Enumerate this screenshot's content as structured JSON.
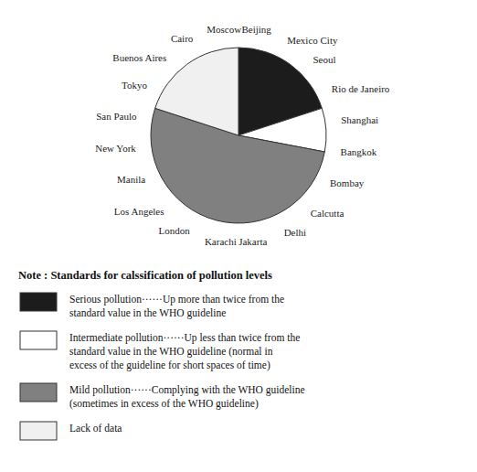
{
  "chart_data": {
    "type": "pie",
    "title": "Note : Standards for calssification of pollution levels",
    "categories": [
      "Serious pollution······Up more than twice from the\nstandard value in the WHO guideline",
      "Intermediate pollution······Up less than twice from the\nstandard value in the WHO guideline (normal in\nexcess of the guideline for short spaces of time)",
      "Mild pollution······Complying with the WHO guideline\n(sometimes in excess of the WHO guideline)",
      "Lack of data"
    ],
    "values": [
      20,
      8,
      52,
      20
    ],
    "colors": [
      "#1c1c1c",
      "#ffffff",
      "#808080",
      "#f0f0f0"
    ],
    "legend": "bottom",
    "annotations": [
      "Beijing",
      "Mexico City",
      "Seoul",
      "Rio de Janeiro",
      "Shanghai",
      "Bangkok",
      "Bombay",
      "Calcutta",
      "Delhi",
      "Jakarta",
      "Karachi",
      "London",
      "Los Angeles",
      "Manila",
      "New York",
      "San Paulo",
      "Tokyo",
      "Buenos Aires",
      "Cairo",
      "Moscow"
    ]
  }
}
